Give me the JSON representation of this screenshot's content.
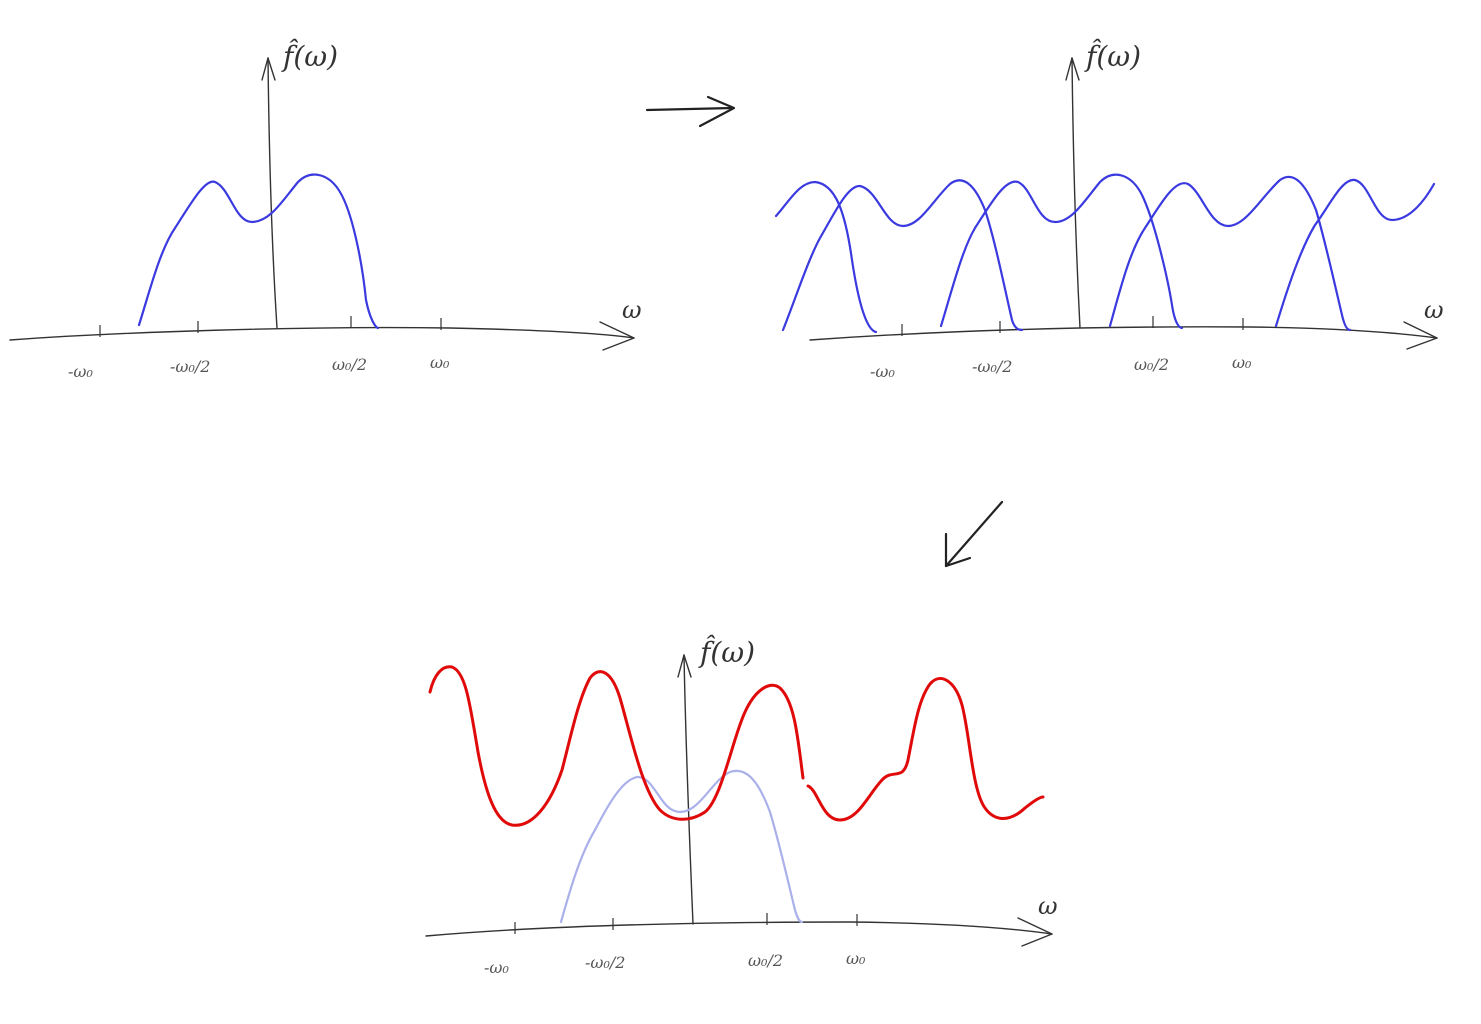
{
  "labels": {
    "y_axis": "f̂(ω)",
    "x_axis": "ω"
  },
  "tick_labels": [
    "-ω₀",
    "-ω₀/2",
    "ω₀/2",
    "ω₀"
  ],
  "colors": {
    "original_spectrum": "#3a3ae0",
    "replicas": "#3a3ae0",
    "aliased_sum": "#e00a0a",
    "faded_original": "#aab0ea",
    "ink": "#333333"
  },
  "panels": [
    {
      "id": "original",
      "description_role": "spectrum before sampling"
    },
    {
      "id": "replicated",
      "description_role": "shifted copies of spectrum"
    },
    {
      "id": "aliased",
      "description_role": "sum of overlapping copies"
    }
  ]
}
